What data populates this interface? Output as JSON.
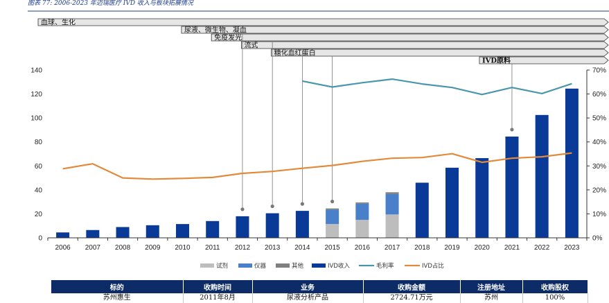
{
  "caption": "图表 77:  2006-2023 年迈瑞医疗 IVD 收入与板块拓展情况",
  "colors": {
    "reagent": "#bdbdbd",
    "instrument": "#4a7fc9",
    "other": "#7f7f7f",
    "ivd_revenue": "#0a3a97",
    "gross_margin": "#4a97ad",
    "ivd_share": "#e38a3a",
    "banner_fill": "#e6e6e6",
    "table_header": "#0d2b66"
  },
  "chart_data": {
    "type": "bar",
    "categories": [
      "2006",
      "2007",
      "2008",
      "2009",
      "2010",
      "2011",
      "2012",
      "2013",
      "2014",
      "2015",
      "2016",
      "2017",
      "2018",
      "2019",
      "2020",
      "2021",
      "2022",
      "2023"
    ],
    "y_left": {
      "lim": [
        0,
        140
      ],
      "ticks": [
        "0",
        "20",
        "40",
        "60",
        "80",
        "100",
        "120",
        "140"
      ]
    },
    "y_right": {
      "lim": [
        0,
        0.7
      ],
      "ticks": [
        "0%",
        "10%",
        "20%",
        "30%",
        "40%",
        "50%",
        "60%",
        "70%"
      ]
    },
    "series": [
      {
        "name": "试剂",
        "kind": "stacked-bar",
        "values": [
          null,
          null,
          null,
          null,
          null,
          null,
          null,
          null,
          null,
          11.5,
          15,
          19.5,
          null,
          null,
          null,
          null,
          null,
          null
        ]
      },
      {
        "name": "仪器",
        "kind": "stacked-bar",
        "values": [
          null,
          null,
          null,
          null,
          null,
          null,
          null,
          null,
          null,
          12,
          13.5,
          17,
          null,
          null,
          null,
          null,
          null,
          null
        ]
      },
      {
        "name": "其他",
        "kind": "stacked-bar",
        "values": [
          null,
          null,
          null,
          null,
          null,
          null,
          null,
          null,
          null,
          1,
          1,
          1.5,
          null,
          null,
          null,
          null,
          null,
          null
        ]
      },
      {
        "name": "IVD收入",
        "kind": "bar",
        "values": [
          4.5,
          6.5,
          9,
          10.5,
          11.5,
          14,
          18,
          20.5,
          22.5,
          null,
          null,
          null,
          46,
          58.5,
          66.5,
          84.5,
          102.5,
          124.5
        ]
      },
      {
        "name": "毛利率",
        "kind": "line",
        "axis": "right",
        "values": [
          null,
          null,
          null,
          null,
          null,
          null,
          null,
          null,
          0.654,
          0.629,
          0.647,
          0.662,
          0.642,
          0.627,
          0.598,
          0.627,
          0.602,
          0.643
        ]
      },
      {
        "name": "IVD占比",
        "kind": "line",
        "axis": "right",
        "values": [
          0.288,
          0.309,
          0.25,
          0.245,
          0.248,
          0.252,
          0.269,
          0.277,
          0.29,
          0.302,
          0.319,
          0.332,
          0.335,
          0.351,
          0.315,
          0.332,
          0.338,
          0.354
        ]
      }
    ],
    "legend": {
      "position": "bottom",
      "items": [
        "试剂",
        "仪器",
        "其他",
        "IVD收入",
        "毛利率",
        "IVD占比"
      ]
    },
    "banners": [
      {
        "label": "血球、生化",
        "start_year": "2006"
      },
      {
        "label": "尿液、微生物、凝血",
        "start_year": "2012"
      },
      {
        "label": "免疫发光",
        "start_year": "2013"
      },
      {
        "label": "流式",
        "start_year": "2014"
      },
      {
        "label": "糖化血红蛋白",
        "start_year": "2015"
      },
      {
        "label": "IVD原料",
        "start_year": "2021"
      }
    ],
    "markers": [
      "2012",
      "2013",
      "2014",
      "2015",
      "2021"
    ],
    "grid": false
  },
  "table": {
    "headers": [
      "标的",
      "收购时间",
      "业务",
      "收购金额",
      "注册地址",
      "收购股权"
    ],
    "rows": [
      [
        "苏州惠生",
        "2011年8月",
        "尿液分析产品",
        "2724.71万元",
        "苏州",
        "100%"
      ]
    ]
  }
}
